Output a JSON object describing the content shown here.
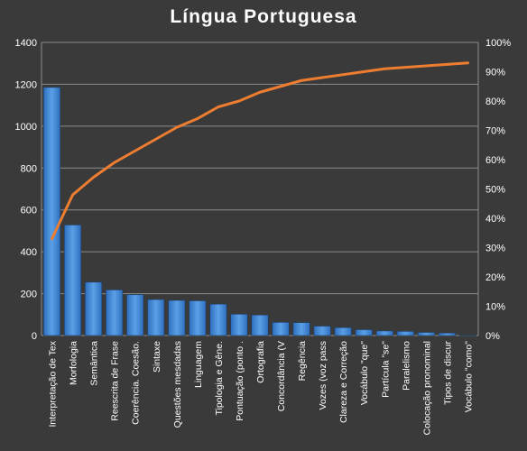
{
  "chart_data": {
    "type": "bar",
    "title": "Língua  Portuguesa",
    "categories": [
      "Interpretação de Tex",
      "Morfologia",
      "Semântica",
      "Reescrita de Frase",
      "Coerência. Coesão.",
      "Sintaxe",
      "Questões mesdadas",
      "Linguagem",
      "Tipologia e Gêne.",
      "Pontuação (ponto .",
      "Ortografia",
      "Concordância (V",
      "Regência",
      "Vozes (voz pass",
      "Clareza e Correção",
      "Vocábulo \"que\"",
      "Partícula \"se\"",
      "Paralelismo",
      "Colocação pronominal",
      "Tipos de discur",
      "Vocábulo \"como\""
    ],
    "series": [
      {
        "type": "bar",
        "axis": "left",
        "color": "#4a8fd6",
        "values": [
          1185,
          528,
          255,
          218,
          195,
          172,
          168,
          166,
          150,
          102,
          98,
          63,
          62,
          45,
          38,
          28,
          22,
          20,
          15,
          12,
          2
        ]
      },
      {
        "type": "line",
        "axis": "right",
        "color": "#ed7d31",
        "values": [
          33,
          48,
          54,
          59,
          63,
          67,
          71,
          74,
          78,
          80,
          83,
          85,
          87,
          88,
          89,
          90,
          91,
          91.5,
          92,
          92.5,
          93
        ]
      }
    ],
    "y_left": {
      "min": 0,
      "max": 1400,
      "step": 200,
      "ticks": [
        "0",
        "200",
        "400",
        "600",
        "800",
        "1000",
        "1200",
        "1400"
      ]
    },
    "y_right": {
      "min": 0,
      "max": 100,
      "step": 10,
      "ticks": [
        "0%",
        "10%",
        "20%",
        "30%",
        "40%",
        "50%",
        "60%",
        "70%",
        "80%",
        "90%",
        "100%"
      ]
    },
    "grid": true,
    "legend": "none"
  }
}
